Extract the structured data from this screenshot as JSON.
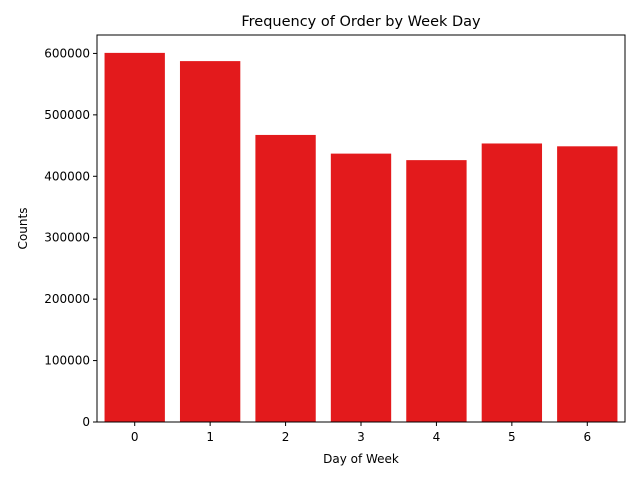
{
  "chart_data": {
    "type": "bar",
    "title": "Frequency of Order by Week Day",
    "xlabel": "Day of Week",
    "ylabel": "Counts",
    "categories": [
      "0",
      "1",
      "2",
      "3",
      "4",
      "5",
      "6"
    ],
    "values": [
      600900,
      587500,
      467300,
      436900,
      426300,
      453400,
      448800
    ],
    "ylim": [
      0,
      630000
    ],
    "yticks": [
      0,
      100000,
      200000,
      300000,
      400000,
      500000,
      600000
    ],
    "ytick_labels": [
      "0",
      "100000",
      "200000",
      "300000",
      "400000",
      "500000",
      "600000"
    ],
    "bar_color": "#e31a1c",
    "grid": false,
    "legend": "none"
  }
}
